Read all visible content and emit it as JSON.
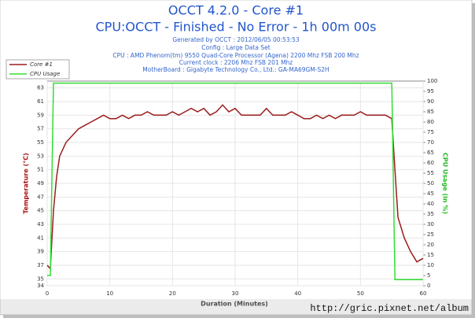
{
  "chart_data": {
    "type": "line",
    "title": "OCCT 4.2.0 - Core #1",
    "subtitle": "CPU:OCCT - Finished - No Error - 1h 00m 00s",
    "info": [
      "Generated by OCCT : 2012/06/05 00:53:53",
      "Config : Large Data Set",
      "CPU : AMD Phenom(tm) 9550 Quad-Core Processor (Agena) 2200 Mhz FSB 200 Mhz",
      "Current clock : 2206 Mhz FSB 201 Mhz",
      "MotherBoard : Gigabyte Technology Co., Ltd.: GA-MA69GM-S2H"
    ],
    "xlabel": "Duration (Minutes)",
    "ylabel": "Temperature (°C)",
    "y2label": "CPU Usage (in %)",
    "watermark": "http://gric.pixnet.net/album",
    "legend": "upper left",
    "grid": true,
    "x": [
      0,
      0.5,
      1,
      1.5,
      2,
      3,
      4,
      5,
      6,
      7,
      8,
      9,
      10,
      11,
      12,
      13,
      14,
      15,
      16,
      17,
      18,
      19,
      20,
      21,
      22,
      23,
      24,
      25,
      26,
      27,
      28,
      29,
      30,
      31,
      32,
      33,
      34,
      35,
      36,
      37,
      38,
      39,
      40,
      41,
      42,
      43,
      44,
      45,
      46,
      47,
      48,
      49,
      50,
      51,
      52,
      53,
      54,
      55,
      55.5,
      56,
      57,
      58,
      59,
      60
    ],
    "series": [
      {
        "name": "Core #1",
        "color": "#9b1c1c",
        "values": [
          37,
          36.5,
          45,
          50,
          53,
          55,
          56,
          57,
          57.5,
          58,
          58.5,
          59,
          58.5,
          58.5,
          59,
          58.5,
          59,
          59,
          59.5,
          59,
          59,
          59,
          59.5,
          59,
          59.5,
          60,
          59.5,
          60,
          59,
          59.5,
          60.5,
          59.5,
          60,
          59,
          59,
          59,
          59,
          60,
          59,
          59,
          59,
          59.5,
          59,
          58.5,
          58.5,
          59,
          58.5,
          59,
          58.5,
          59,
          59,
          59,
          59.5,
          59,
          59,
          59,
          59,
          58.5,
          51,
          44,
          41,
          39,
          37.5,
          38
        ]
      },
      {
        "name": "CPU Usage",
        "color": "#33dd33",
        "axis": "y2",
        "values": [
          5,
          5,
          99,
          99,
          99,
          99,
          99,
          99,
          99,
          99,
          99,
          99,
          99,
          99,
          99,
          99,
          99,
          99,
          99,
          99,
          99,
          99,
          99,
          99,
          99,
          99,
          99,
          99,
          99,
          99,
          99,
          99,
          99,
          99,
          99,
          99,
          99,
          99,
          99,
          99,
          99,
          99,
          99,
          99,
          99,
          99,
          99,
          99,
          99,
          99,
          99,
          99,
          99,
          99,
          99,
          99,
          99,
          99,
          3,
          3,
          3,
          3,
          3,
          3
        ]
      }
    ],
    "xlim": [
      0,
      60
    ],
    "xticks": [
      0,
      10,
      20,
      30,
      40,
      50,
      60
    ],
    "ylim": [
      34,
      64
    ],
    "yticks": [
      34,
      35,
      37,
      39,
      41,
      43,
      45,
      47,
      49,
      51,
      53,
      55,
      57,
      59,
      61,
      63
    ],
    "y2lim": [
      0,
      100
    ],
    "y2ticks": [
      0,
      5,
      10,
      15,
      20,
      25,
      30,
      35,
      40,
      45,
      50,
      55,
      60,
      65,
      70,
      75,
      80,
      85,
      90,
      95,
      100
    ]
  }
}
